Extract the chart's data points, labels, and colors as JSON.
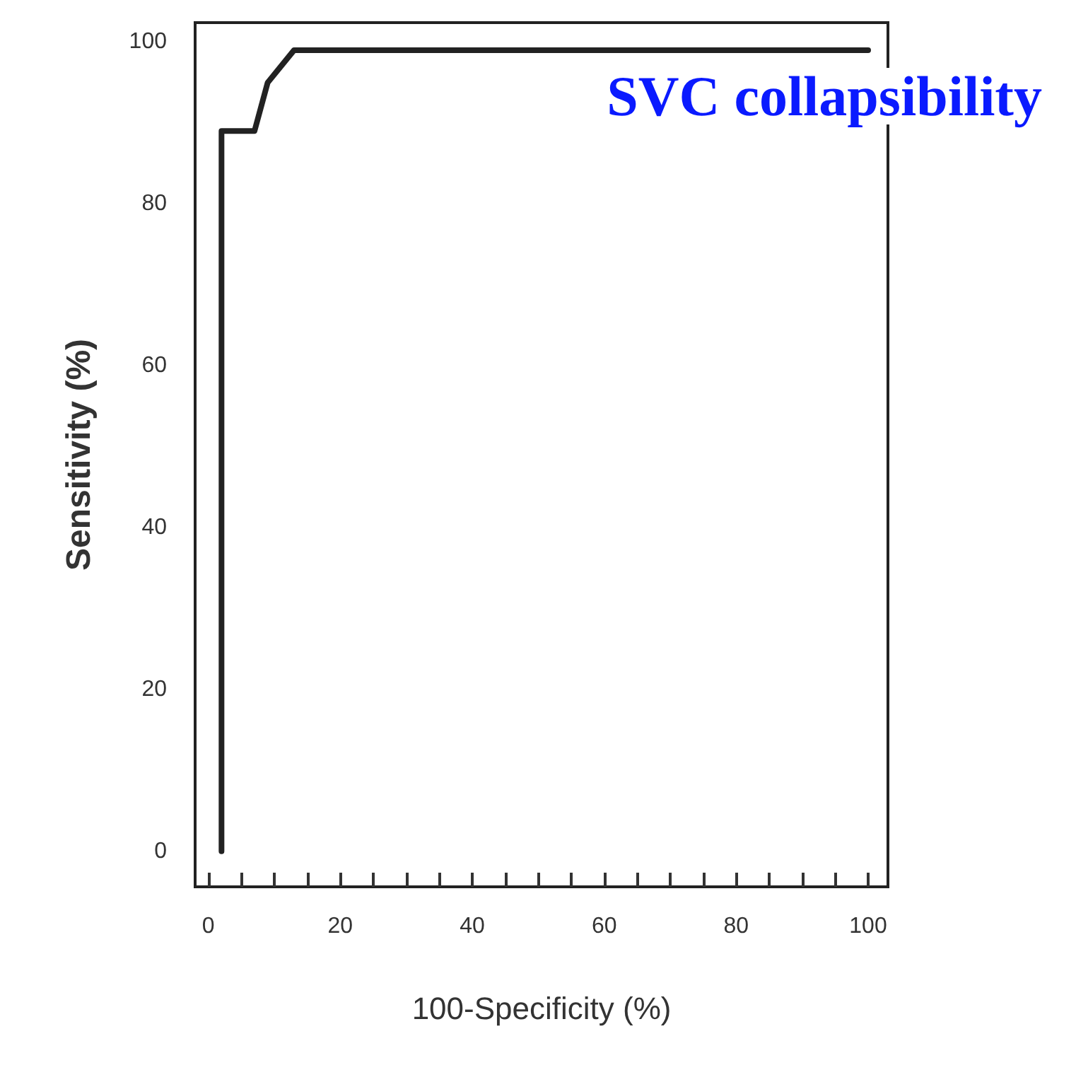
{
  "chart_data": {
    "type": "line",
    "title": "SVC collapsibility",
    "xlabel": "100-Specificity (%)",
    "ylabel": "Sensitivity (%)",
    "x": [
      2,
      2,
      7,
      9,
      13,
      100
    ],
    "series": [
      {
        "color": "#222222",
        "values": [
          0,
          89,
          89,
          95,
          99,
          99
        ]
      }
    ],
    "xlim": [
      -2,
      103
    ],
    "ylim": [
      -4.4,
      102.4
    ],
    "xticks": [
      0,
      {
        "value": 5,
        "label": null
      },
      {
        "value": 10,
        "label": null
      },
      {
        "value": 15,
        "label": null
      },
      20,
      {
        "value": 25,
        "label": null
      },
      {
        "value": 30,
        "label": null
      },
      {
        "value": 35,
        "label": null
      },
      40,
      {
        "value": 45,
        "label": null
      },
      {
        "value": 50,
        "label": null
      },
      {
        "value": 55,
        "label": null
      },
      60,
      {
        "value": 65,
        "label": null
      },
      {
        "value": 70,
        "label": null
      },
      {
        "value": 75,
        "label": null
      },
      80,
      {
        "value": 85,
        "label": null
      },
      {
        "value": 90,
        "label": null
      },
      {
        "value": 95,
        "label": null
      },
      100
    ],
    "yticks": [
      0,
      20,
      40,
      60,
      80,
      100
    ],
    "grid": false,
    "marker": "none",
    "line_style": "solid"
  }
}
